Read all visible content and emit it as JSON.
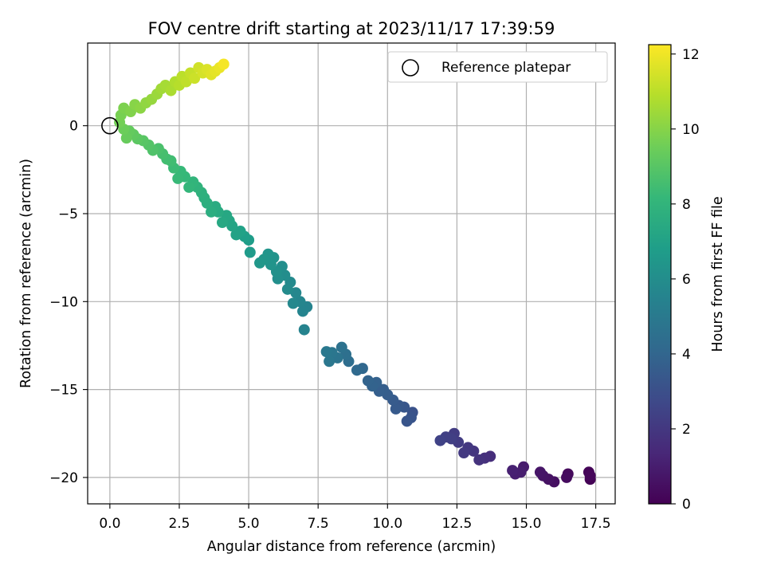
{
  "chart_data": {
    "type": "scatter",
    "title": "FOV centre drift starting at 2023/11/17 17:39:59",
    "xlabel": "Angular distance from reference (arcmin)",
    "ylabel": "Rotation from reference (arcmin)",
    "xlim": [
      -0.8,
      18.2
    ],
    "ylim": [
      -21.5,
      4.7
    ],
    "xticks": [
      0.0,
      2.5,
      5.0,
      7.5,
      10.0,
      12.5,
      15.0,
      17.5
    ],
    "xtick_labels": [
      "0.0",
      "2.5",
      "5.0",
      "7.5",
      "10.0",
      "12.5",
      "15.0",
      "17.5"
    ],
    "yticks": [
      0,
      -5,
      -10,
      -15,
      -20
    ],
    "ytick_labels": [
      "0",
      "−5",
      "−10",
      "−15",
      "−20"
    ],
    "grid": true,
    "legend": {
      "position": "top-right",
      "entries": [
        "Reference platepar"
      ]
    },
    "reference_point": {
      "x": 0,
      "y": 0
    },
    "colorbar": {
      "label": "Hours from first FF file",
      "range": [
        0,
        12.25
      ],
      "ticks": [
        0,
        2,
        4,
        6,
        8,
        10,
        12
      ],
      "colormap": "viridis",
      "stops": [
        "#440154",
        "#482878",
        "#3e4989",
        "#31688e",
        "#26828e",
        "#1f9e89",
        "#35b779",
        "#6ece58",
        "#b5de2b",
        "#fde725"
      ]
    },
    "series": [
      {
        "values_note": "",
        "points": [
          [
            17.3,
            -20.1,
            0.05
          ],
          [
            17.25,
            -19.7,
            0.12
          ],
          [
            17.3,
            -19.9,
            0.18
          ],
          [
            16.5,
            -19.8,
            0.3
          ],
          [
            16.45,
            -20.0,
            0.36
          ],
          [
            16.0,
            -20.25,
            0.5
          ],
          [
            15.8,
            -20.1,
            0.58
          ],
          [
            15.6,
            -19.9,
            0.65
          ],
          [
            15.5,
            -19.7,
            0.7
          ],
          [
            14.9,
            -19.4,
            0.9
          ],
          [
            14.8,
            -19.7,
            1.0
          ],
          [
            14.6,
            -19.8,
            1.05
          ],
          [
            14.5,
            -19.6,
            1.12
          ],
          [
            13.7,
            -18.8,
            1.6
          ],
          [
            13.5,
            -18.9,
            1.7
          ],
          [
            13.3,
            -19.0,
            1.8
          ],
          [
            13.1,
            -18.5,
            1.9
          ],
          [
            12.9,
            -18.3,
            2.0
          ],
          [
            12.75,
            -18.6,
            2.05
          ],
          [
            12.55,
            -18.0,
            2.15
          ],
          [
            12.4,
            -17.5,
            2.2
          ],
          [
            12.3,
            -17.8,
            2.3
          ],
          [
            12.1,
            -17.7,
            2.35
          ],
          [
            11.9,
            -17.9,
            2.45
          ],
          [
            10.9,
            -16.3,
            3.1
          ],
          [
            10.85,
            -16.6,
            3.2
          ],
          [
            10.7,
            -16.8,
            3.25
          ],
          [
            10.6,
            -16.0,
            3.3
          ],
          [
            10.4,
            -15.9,
            3.4
          ],
          [
            10.3,
            -16.1,
            3.45
          ],
          [
            10.2,
            -15.6,
            3.5
          ],
          [
            10.0,
            -15.3,
            3.6
          ],
          [
            9.85,
            -15.0,
            3.65
          ],
          [
            9.7,
            -15.1,
            3.7
          ],
          [
            9.6,
            -14.6,
            3.8
          ],
          [
            9.45,
            -14.8,
            3.85
          ],
          [
            9.3,
            -14.5,
            3.9
          ],
          [
            9.1,
            -13.8,
            4.1
          ],
          [
            8.9,
            -13.9,
            4.2
          ],
          [
            8.6,
            -13.4,
            4.4
          ],
          [
            8.5,
            -13.0,
            4.5
          ],
          [
            8.35,
            -12.6,
            4.6
          ],
          [
            8.2,
            -13.2,
            4.7
          ],
          [
            8.0,
            -12.9,
            4.8
          ],
          [
            7.9,
            -13.4,
            4.85
          ],
          [
            7.8,
            -12.85,
            4.9
          ],
          [
            7.1,
            -10.3,
            5.5
          ],
          [
            6.95,
            -10.55,
            5.55
          ],
          [
            7.0,
            -11.6,
            5.5
          ],
          [
            6.85,
            -10.0,
            5.6
          ],
          [
            6.7,
            -9.5,
            5.7
          ],
          [
            6.6,
            -10.1,
            5.75
          ],
          [
            6.5,
            -8.9,
            5.85
          ],
          [
            6.4,
            -9.3,
            5.9
          ],
          [
            6.3,
            -8.5,
            6.0
          ],
          [
            6.2,
            -8.0,
            6.05
          ],
          [
            6.05,
            -8.7,
            6.1
          ],
          [
            6.0,
            -8.3,
            6.15
          ],
          [
            5.9,
            -7.5,
            6.25
          ],
          [
            5.8,
            -7.9,
            6.3
          ],
          [
            5.7,
            -7.3,
            6.35
          ],
          [
            5.55,
            -7.6,
            6.4
          ],
          [
            5.4,
            -7.8,
            6.45
          ],
          [
            5.05,
            -7.2,
            6.65
          ],
          [
            5.0,
            -6.5,
            6.75
          ],
          [
            4.85,
            -6.3,
            6.85
          ],
          [
            4.7,
            -6.0,
            7.0
          ],
          [
            4.55,
            -6.2,
            7.05
          ],
          [
            4.4,
            -5.7,
            7.15
          ],
          [
            4.3,
            -5.4,
            7.2
          ],
          [
            4.2,
            -5.1,
            7.3
          ],
          [
            4.05,
            -5.5,
            7.35
          ],
          [
            3.9,
            -4.9,
            7.45
          ],
          [
            3.8,
            -4.6,
            7.5
          ],
          [
            3.65,
            -4.9,
            7.6
          ],
          [
            3.5,
            -4.4,
            7.65
          ],
          [
            3.4,
            -4.1,
            7.75
          ],
          [
            3.3,
            -3.8,
            7.8
          ],
          [
            3.15,
            -3.5,
            7.9
          ],
          [
            3.0,
            -3.2,
            8.0
          ],
          [
            2.85,
            -3.5,
            8.05
          ],
          [
            2.7,
            -2.9,
            8.15
          ],
          [
            2.55,
            -2.6,
            8.2
          ],
          [
            2.45,
            -3.0,
            8.25
          ],
          [
            2.3,
            -2.4,
            8.35
          ],
          [
            2.2,
            -2.0,
            8.45
          ],
          [
            2.05,
            -1.9,
            8.5
          ],
          [
            1.9,
            -1.6,
            8.6
          ],
          [
            1.75,
            -1.3,
            8.7
          ],
          [
            1.55,
            -1.4,
            8.8
          ],
          [
            1.4,
            -1.1,
            8.9
          ],
          [
            1.2,
            -0.85,
            9.0
          ],
          [
            1.0,
            -0.75,
            9.1
          ],
          [
            0.85,
            -0.5,
            9.2
          ],
          [
            0.7,
            -0.3,
            9.3
          ],
          [
            0.6,
            -0.7,
            9.35
          ],
          [
            0.5,
            -0.2,
            9.45
          ],
          [
            0.35,
            0.2,
            9.6
          ],
          [
            0.4,
            0.6,
            9.7
          ],
          [
            0.5,
            1.0,
            9.8
          ],
          [
            0.75,
            0.8,
            9.9
          ],
          [
            0.9,
            1.2,
            10.0
          ],
          [
            1.1,
            1.0,
            10.1
          ],
          [
            1.3,
            1.3,
            10.2
          ],
          [
            1.5,
            1.5,
            10.3
          ],
          [
            1.7,
            1.8,
            10.4
          ],
          [
            1.85,
            2.1,
            10.5
          ],
          [
            2.0,
            2.3,
            10.6
          ],
          [
            2.2,
            2.0,
            10.7
          ],
          [
            2.35,
            2.5,
            10.8
          ],
          [
            2.5,
            2.3,
            10.9
          ],
          [
            2.6,
            2.8,
            11.0
          ],
          [
            2.75,
            2.5,
            11.1
          ],
          [
            2.9,
            3.0,
            11.2
          ],
          [
            3.05,
            2.7,
            11.3
          ],
          [
            3.2,
            3.3,
            11.4
          ],
          [
            3.35,
            3.0,
            11.5
          ],
          [
            3.5,
            3.2,
            11.6
          ],
          [
            3.65,
            2.9,
            11.7
          ],
          [
            3.8,
            3.1,
            11.8
          ],
          [
            3.95,
            3.3,
            11.9
          ],
          [
            4.1,
            3.5,
            12.1
          ]
        ]
      }
    ]
  }
}
